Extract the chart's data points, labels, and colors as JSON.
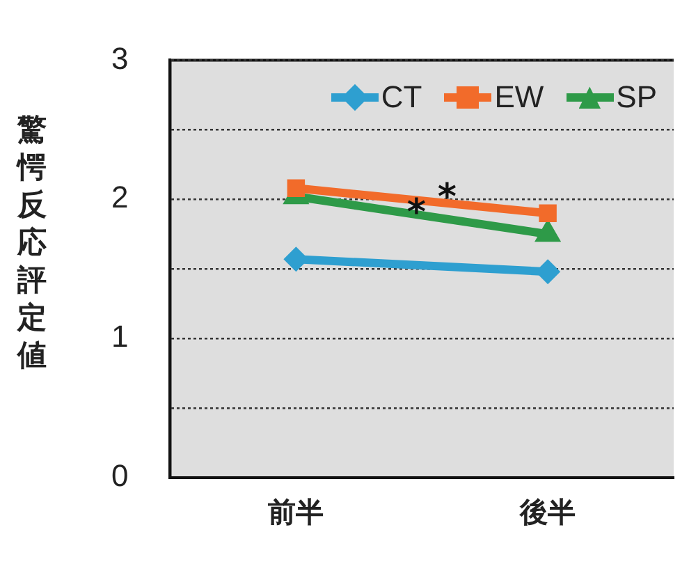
{
  "chart_data": {
    "type": "line",
    "ylabel": "驚愕反応評定値",
    "categories": [
      "前半",
      "後半"
    ],
    "series": [
      {
        "name": "CT",
        "color": "#2e9fd0",
        "marker": "diamond",
        "values": [
          1.57,
          1.48
        ]
      },
      {
        "name": "EW",
        "color": "#f26b2a",
        "marker": "square",
        "values": [
          2.08,
          1.9
        ]
      },
      {
        "name": "SP",
        "color": "#2e9a48",
        "marker": "triangle",
        "values": [
          2.02,
          1.75
        ]
      }
    ],
    "ylim": [
      0,
      3
    ],
    "yticks": [
      0,
      {
        "value": 0.5,
        "label": null
      },
      1,
      {
        "value": 1.5,
        "label": null
      },
      2,
      {
        "value": 2.5,
        "label": null
      },
      3
    ],
    "grid": "y",
    "legend": "top right",
    "annotations": [
      {
        "text": "*",
        "y": 1.98
      },
      {
        "text": "*",
        "y": 1.87
      }
    ]
  }
}
